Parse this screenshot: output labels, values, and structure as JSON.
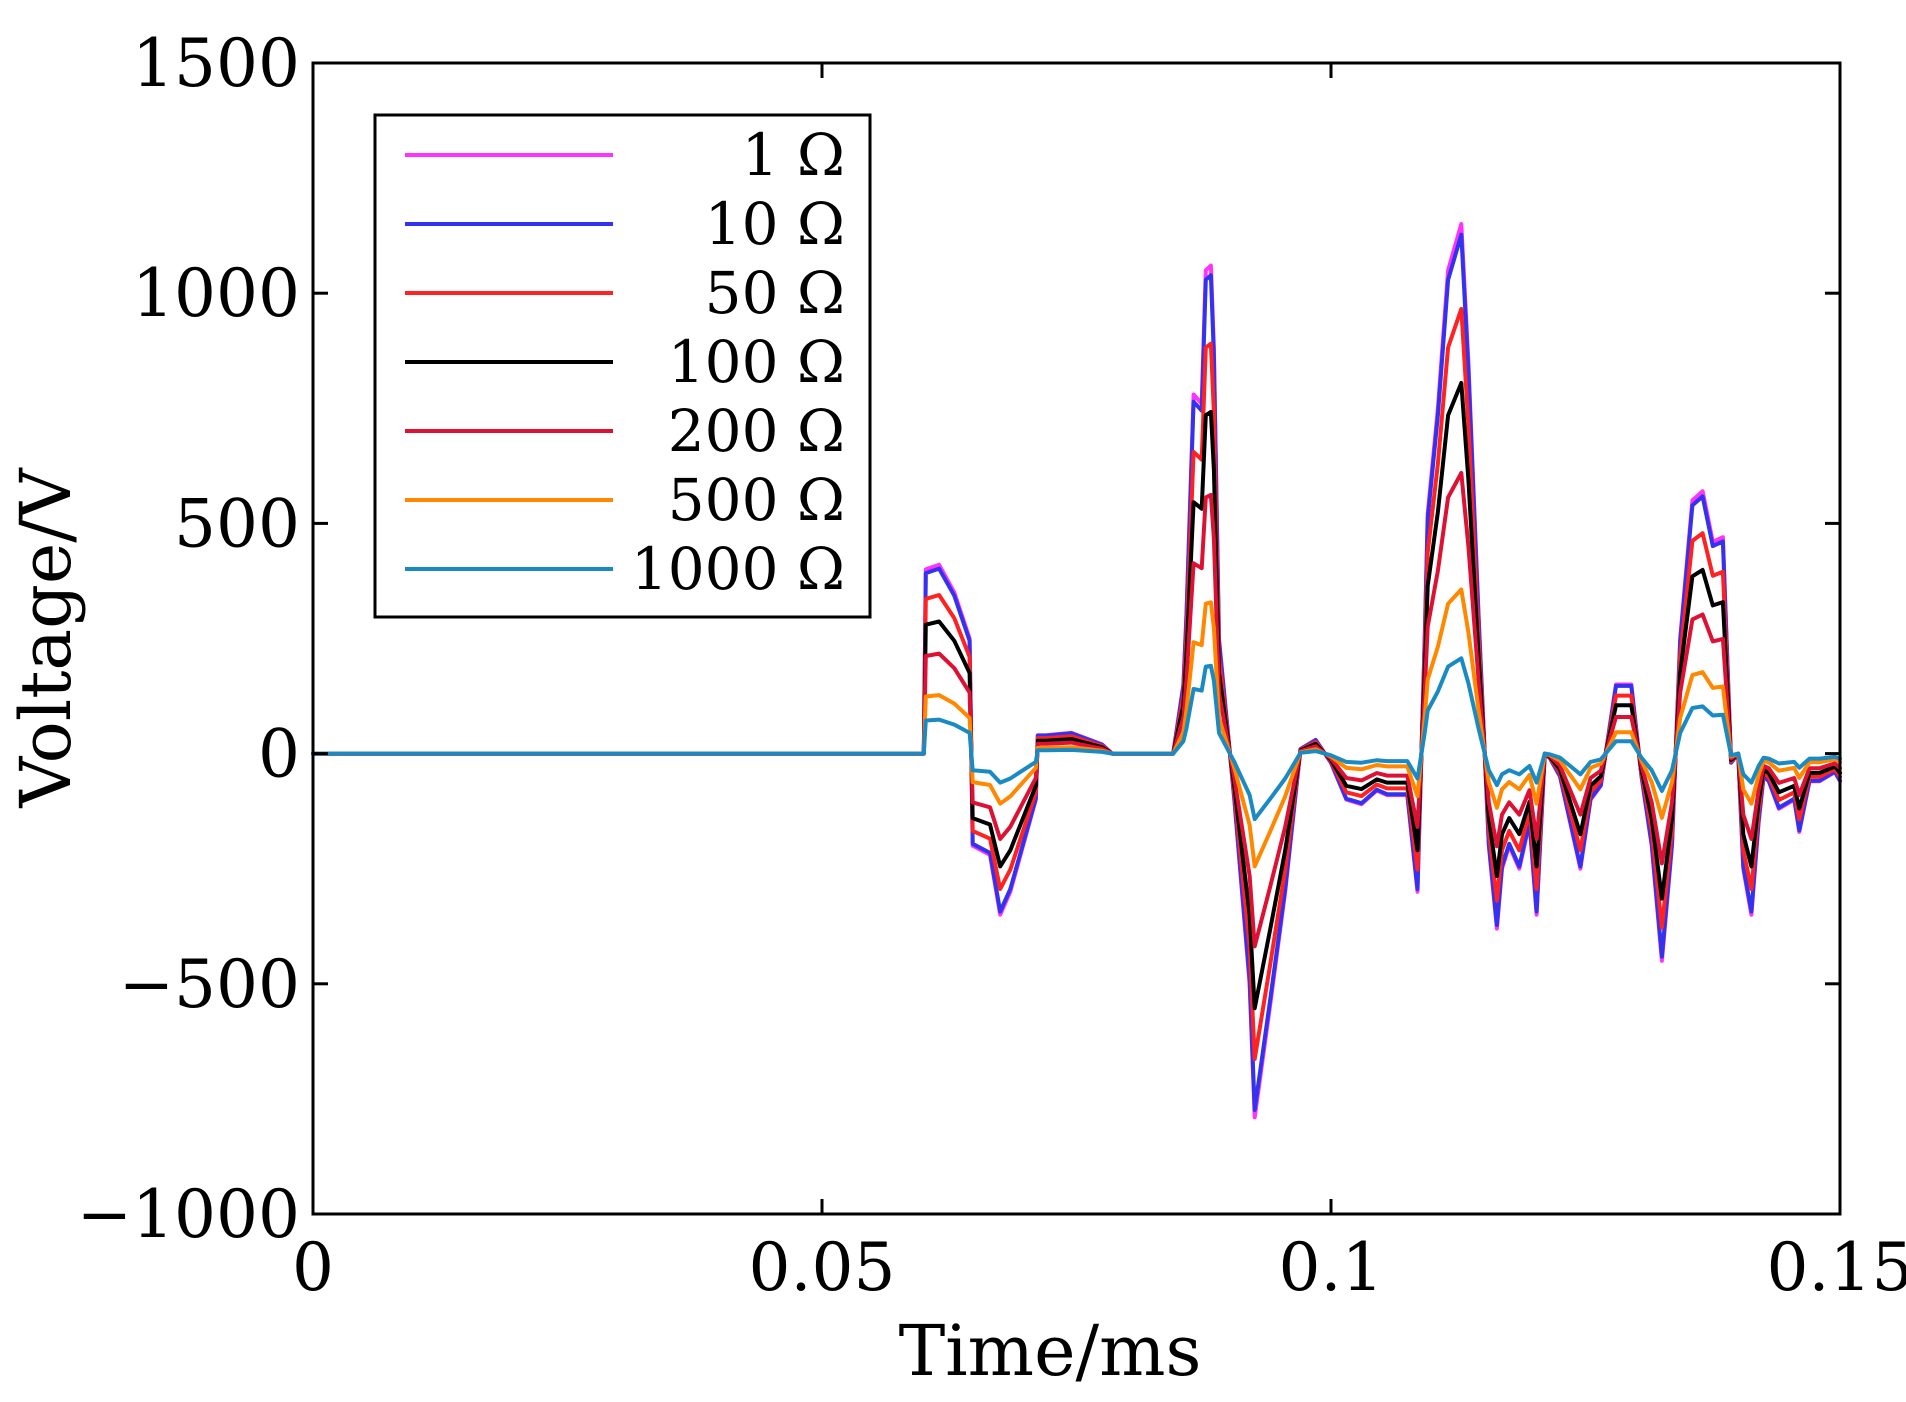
{
  "chart_data": {
    "type": "line",
    "title": "",
    "xlabel": "Time/ms",
    "ylabel": "Voltage/V",
    "xlim": [
      0,
      0.15
    ],
    "ylim": [
      -1000,
      1500
    ],
    "xticks": [
      0,
      0.05,
      0.1,
      0.15
    ],
    "xtick_labels": [
      "0",
      "0.05",
      "0.1",
      "0.15"
    ],
    "yticks": [
      -1000,
      -500,
      0,
      500,
      1000,
      1500
    ],
    "ytick_labels": [
      "−1000",
      "−500",
      "0",
      "500",
      "1000",
      "1500"
    ],
    "legend_position": "top-left",
    "grid": false,
    "x": [
      0,
      0.06,
      0.0598,
      0.0602,
      0.0615,
      0.063,
      0.0645,
      0.0648,
      0.0665,
      0.0675,
      0.0685,
      0.071,
      0.0712,
      0.072,
      0.0745,
      0.0775,
      0.0785,
      0.0835,
      0.0845,
      0.0855,
      0.0858,
      0.0865,
      0.0873,
      0.0877,
      0.0882,
      0.0885,
      0.089,
      0.0905,
      0.092,
      0.0925,
      0.094,
      0.0955,
      0.097,
      0.0985,
      0.1,
      0.1015,
      0.103,
      0.1045,
      0.1055,
      0.1075,
      0.1085,
      0.1092,
      0.1095,
      0.1105,
      0.1115,
      0.1128,
      0.1135,
      0.1145,
      0.1155,
      0.1163,
      0.1168,
      0.1175,
      0.1185,
      0.1195,
      0.1202,
      0.121,
      0.1215,
      0.1225,
      0.1235,
      0.1245,
      0.1255,
      0.1265,
      0.128,
      0.1295,
      0.1305,
      0.1315,
      0.1325,
      0.1335,
      0.1343,
      0.1355,
      0.1365,
      0.1375,
      0.1385,
      0.1393,
      0.14,
      0.1405,
      0.1413,
      0.142,
      0.1425,
      0.143,
      0.144,
      0.1455,
      0.146,
      0.147,
      0.148,
      0.1495,
      0.15
    ],
    "base_waveform": [
      0,
      0,
      0,
      400,
      410,
      350,
      250,
      -200,
      -220,
      -350,
      -300,
      -100,
      40,
      40,
      45,
      20,
      0,
      0,
      0,
      150,
      300,
      780,
      760,
      1050,
      1060,
      880,
      250,
      -100,
      -500,
      -790,
      -550,
      -300,
      10,
      30,
      -20,
      -100,
      -110,
      -80,
      -90,
      -90,
      -300,
      250,
      520,
      750,
      1050,
      1150,
      850,
      300,
      -200,
      -380,
      -250,
      -200,
      -250,
      -150,
      -350,
      0,
      -10,
      -50,
      -150,
      -250,
      -100,
      -70,
      150,
      150,
      -50,
      -200,
      -450,
      -200,
      250,
      550,
      570,
      460,
      470,
      -20,
      0,
      -250,
      -350,
      -150,
      -50,
      -60,
      -120,
      -100,
      -170,
      -60,
      -60,
      -40,
      -60
    ],
    "series": [
      {
        "name": "1 Ω",
        "color": "#ff33ff",
        "scale": 1.0
      },
      {
        "name": "10 Ω",
        "color": "#3333ee",
        "scale": 0.98
      },
      {
        "name": "50 Ω",
        "color": "#ff2222",
        "scale": 0.84
      },
      {
        "name": "100 Ω",
        "color": "#000000",
        "scale": 0.7
      },
      {
        "name": "200 Ω",
        "color": "#dd1133",
        "scale": 0.53
      },
      {
        "name": "500 Ω",
        "color": "#ff8800",
        "scale": 0.31
      },
      {
        "name": "1000 Ω",
        "color": "#1a8ac2",
        "scale": 0.18
      }
    ]
  }
}
